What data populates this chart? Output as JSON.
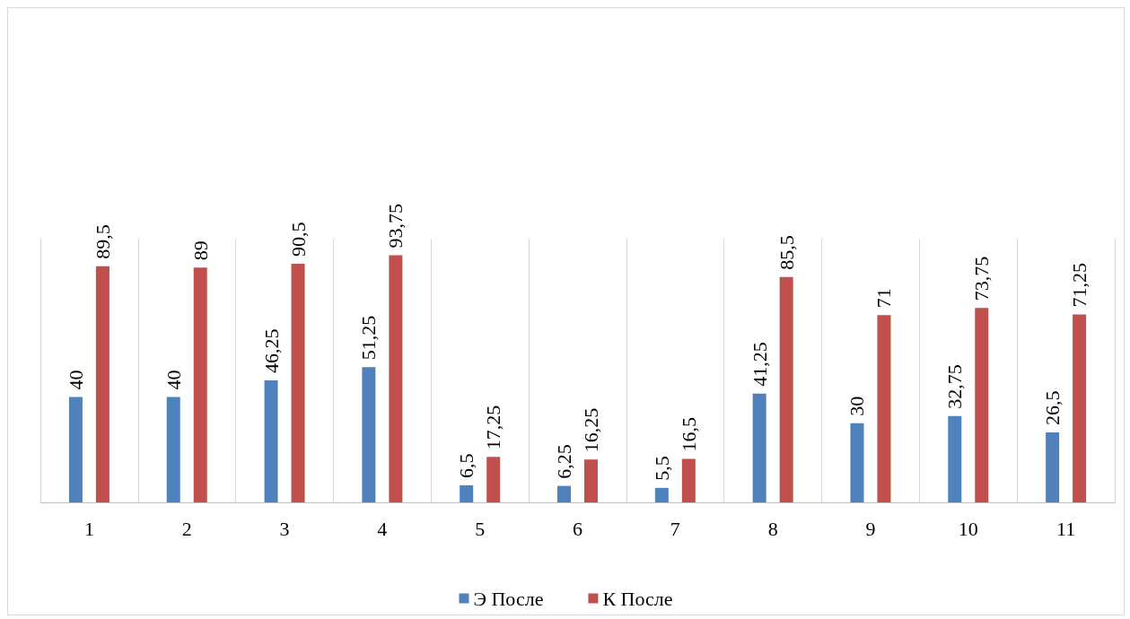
{
  "chart_data": {
    "type": "bar",
    "categories": [
      "1",
      "2",
      "3",
      "4",
      "5",
      "6",
      "7",
      "8",
      "9",
      "10",
      "11"
    ],
    "series": [
      {
        "name": "Э После",
        "color": "#4f81bd",
        "values": [
          40,
          40,
          46.25,
          51.25,
          6.5,
          6.25,
          5.5,
          41.25,
          30,
          32.75,
          26.5
        ],
        "value_labels": [
          "40",
          "40",
          "46,25",
          "51,25",
          "6,5",
          "6,25",
          "5,5",
          "41,25",
          "30",
          "32,75",
          "26,5"
        ]
      },
      {
        "name": "К После",
        "color": "#c0504d",
        "values": [
          89.5,
          89,
          90.5,
          93.75,
          17.25,
          16.25,
          16.5,
          85.5,
          71,
          73.75,
          71.25
        ],
        "value_labels": [
          "89,5",
          "89",
          "90,5",
          "93,75",
          "17,25",
          "16,25",
          "16,5",
          "85,5",
          "71",
          "73,75",
          "71,25"
        ]
      }
    ],
    "ylim": [
      0,
      100
    ],
    "tick_labels": "x",
    "grid": "x",
    "legend": "bottom"
  }
}
